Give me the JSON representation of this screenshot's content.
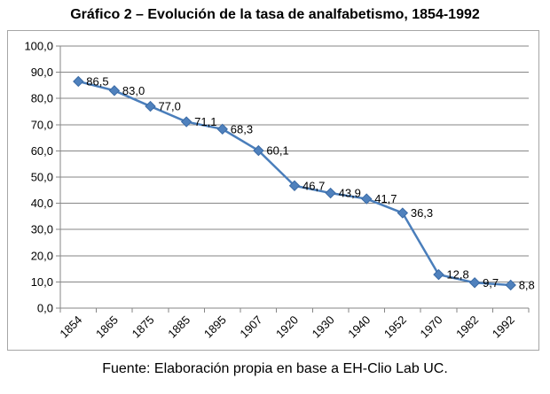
{
  "chart_data": {
    "type": "line",
    "title": "Gráfico 2 – Evolución de la tasa de analfabetismo, 1854-1992",
    "xlabel": "",
    "ylabel": "",
    "categories": [
      "1854",
      "1865",
      "1875",
      "1885",
      "1895",
      "1907",
      "1920",
      "1930",
      "1940",
      "1952",
      "1970",
      "1982",
      "1992"
    ],
    "series": [
      {
        "values": [
          86.5,
          83.0,
          77.0,
          71.1,
          68.3,
          60.1,
          46.7,
          43.9,
          41.7,
          36.3,
          12.8,
          9.7,
          8.8
        ],
        "labels": [
          "86,5",
          "83,0",
          "77,0",
          "71,1",
          "68,3",
          "60,1",
          "46,7",
          "43,9",
          "41,7",
          "36,3",
          "12,8",
          "9,7",
          "8,8"
        ]
      }
    ],
    "ylim": [
      0,
      100
    ],
    "yticks": [
      "0,0",
      "10,0",
      "20,0",
      "30,0",
      "40,0",
      "50,0",
      "60,0",
      "70,0",
      "80,0",
      "90,0",
      "100,0"
    ],
    "grid": true,
    "legend": "none",
    "colors": {
      "line": "#4a7ebb",
      "marker": "#4f81bd",
      "grid": "#868686",
      "axis": "#868686"
    }
  },
  "source": "Fuente: Elaboración propia en base a EH-Clio Lab UC."
}
